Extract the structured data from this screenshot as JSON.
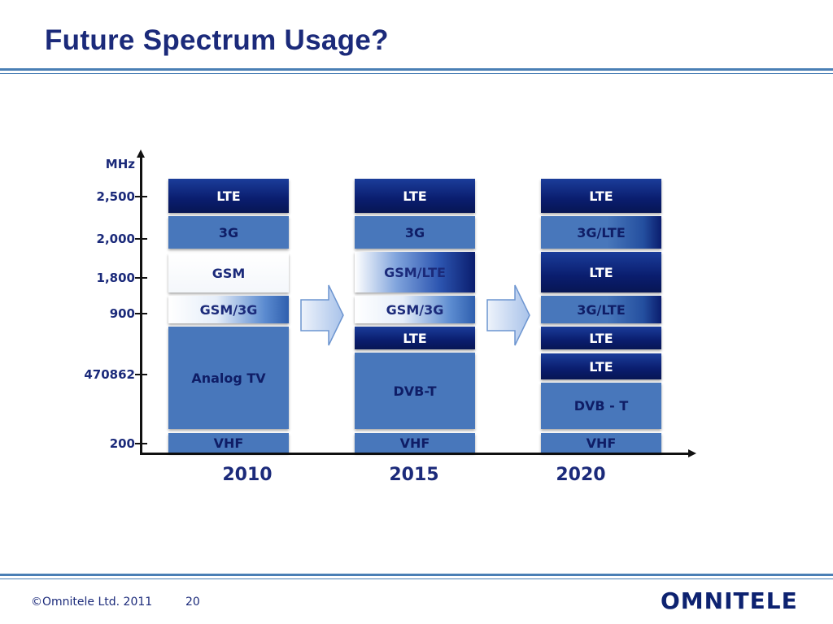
{
  "title": "Future Spectrum Usage?",
  "axis": {
    "unit": "MHz",
    "ticks": [
      "2,500",
      "2,000",
      "1,800",
      "900",
      "470862",
      "200"
    ]
  },
  "years": [
    "2010",
    "2015",
    "2020"
  ],
  "columns": [
    {
      "year": "2010",
      "blocks": [
        "LTE",
        "3G",
        "GSM",
        "GSM/3G",
        "Analog TV",
        "VHF"
      ]
    },
    {
      "year": "2015",
      "blocks": [
        "LTE",
        "3G",
        "GSM/LTE",
        "GSM/3G",
        "LTE",
        "DVB-T",
        "VHF"
      ]
    },
    {
      "year": "2020",
      "blocks": [
        "LTE",
        "3G/LTE",
        "LTE",
        "3G/LTE",
        "LTE",
        "LTE",
        "DVB - T",
        "VHF"
      ]
    }
  ],
  "footer": {
    "copyright": "©Omnitele Ltd. 2011",
    "page": "20",
    "logo": "OMNITELE"
  }
}
